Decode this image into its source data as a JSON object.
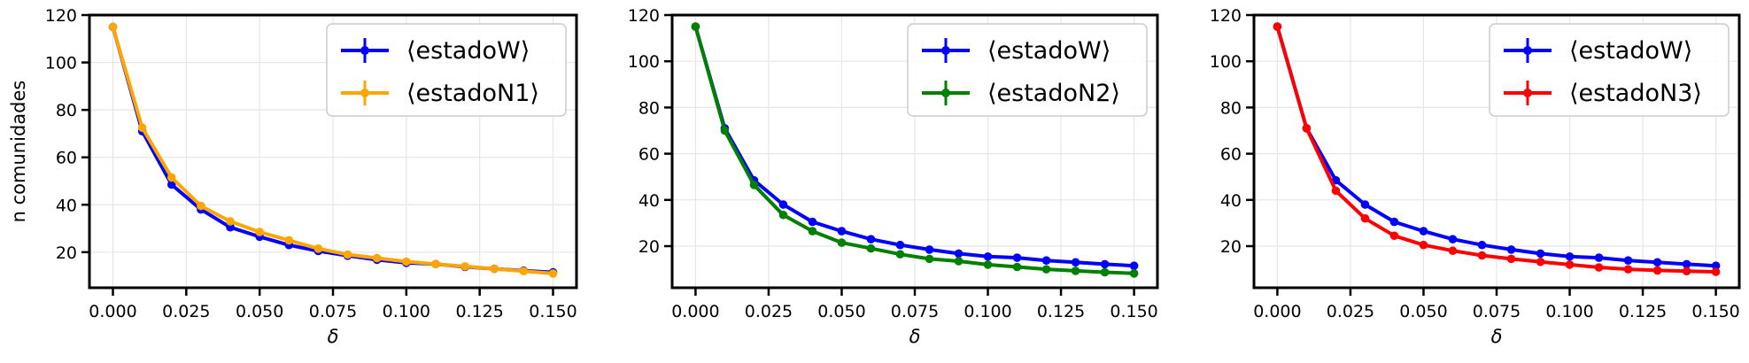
{
  "chart_data": [
    {
      "type": "line",
      "xlabel": "δ",
      "ylabel": "n comunidades",
      "xlim": [
        -0.008,
        0.158
      ],
      "ylim": [
        5,
        120
      ],
      "xticks": [
        "0.000",
        "0.025",
        "0.050",
        "0.075",
        "0.100",
        "0.125",
        "0.150"
      ],
      "yticks": [
        "20",
        "40",
        "60",
        "80",
        "100",
        "120"
      ],
      "grid": true,
      "legend_position": "upper-right",
      "x": [
        0.0,
        0.01,
        0.02,
        0.03,
        0.04,
        0.05,
        0.06,
        0.07,
        0.08,
        0.09,
        0.1,
        0.11,
        0.12,
        0.13,
        0.14,
        0.15
      ],
      "series": [
        {
          "name": "⟨estadoW⟩",
          "color": "#0000ff",
          "values": [
            115,
            71,
            48.5,
            38,
            30.5,
            26.5,
            23,
            20.5,
            18.5,
            16.8,
            15.5,
            15,
            13.8,
            13,
            12.2,
            11.5
          ]
        },
        {
          "name": "⟨estadoN1⟩",
          "color": "#ffa500",
          "values": [
            115,
            72.5,
            51.5,
            39.5,
            33,
            28.5,
            25,
            21.5,
            19,
            17.5,
            16,
            15,
            14,
            13,
            12,
            11
          ]
        }
      ]
    },
    {
      "type": "line",
      "xlabel": "δ",
      "ylabel": "",
      "xlim": [
        -0.008,
        0.158
      ],
      "ylim": [
        2,
        120
      ],
      "xticks": [
        "0.000",
        "0.025",
        "0.050",
        "0.075",
        "0.100",
        "0.125",
        "0.150"
      ],
      "yticks": [
        "20",
        "40",
        "60",
        "80",
        "100",
        "120"
      ],
      "grid": true,
      "legend_position": "upper-right",
      "x": [
        0.0,
        0.01,
        0.02,
        0.03,
        0.04,
        0.05,
        0.06,
        0.07,
        0.08,
        0.09,
        0.1,
        0.11,
        0.12,
        0.13,
        0.14,
        0.15
      ],
      "series": [
        {
          "name": "⟨estadoW⟩",
          "color": "#0000ff",
          "values": [
            115,
            71,
            48.5,
            38,
            30.5,
            26.5,
            23,
            20.5,
            18.5,
            16.8,
            15.5,
            15,
            13.8,
            13,
            12.2,
            11.5
          ]
        },
        {
          "name": "⟨estadoN2⟩",
          "color": "#008000",
          "values": [
            115,
            70,
            46.5,
            33.5,
            26.5,
            21.5,
            19,
            16.5,
            14.5,
            13.5,
            12,
            11,
            10,
            9.3,
            8.7,
            8.2
          ]
        }
      ]
    },
    {
      "type": "line",
      "xlabel": "δ",
      "ylabel": "",
      "xlim": [
        -0.008,
        0.158
      ],
      "ylim": [
        2,
        120
      ],
      "xticks": [
        "0.000",
        "0.025",
        "0.050",
        "0.075",
        "0.100",
        "0.125",
        "0.150"
      ],
      "yticks": [
        "20",
        "40",
        "60",
        "80",
        "100",
        "120"
      ],
      "grid": true,
      "legend_position": "upper-right",
      "x": [
        0.0,
        0.01,
        0.02,
        0.03,
        0.04,
        0.05,
        0.06,
        0.07,
        0.08,
        0.09,
        0.1,
        0.11,
        0.12,
        0.13,
        0.14,
        0.15
      ],
      "series": [
        {
          "name": "⟨estadoW⟩",
          "color": "#0000ff",
          "values": [
            115,
            71,
            48.5,
            38,
            30.5,
            26.5,
            23,
            20.5,
            18.5,
            16.8,
            15.5,
            15,
            13.8,
            13,
            12.2,
            11.5
          ]
        },
        {
          "name": "⟨estadoN3⟩",
          "color": "#ff0000",
          "values": [
            115,
            71,
            44,
            32,
            24.5,
            20.5,
            18,
            16,
            14.5,
            13.2,
            12,
            10.8,
            10,
            9.5,
            9.2,
            8.9
          ]
        }
      ]
    }
  ]
}
